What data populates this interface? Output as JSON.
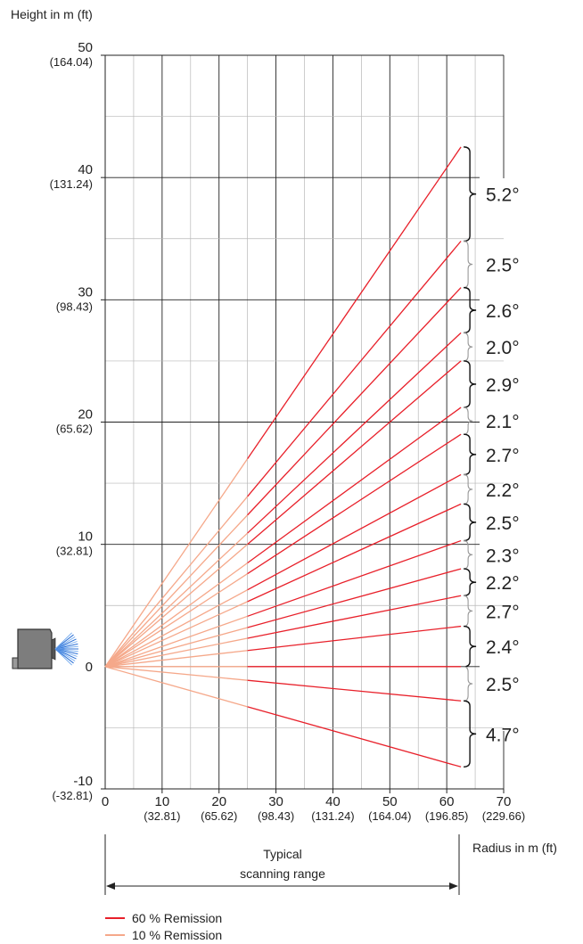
{
  "chart_data": {
    "type": "line",
    "ylabel": "Height in m (ft)",
    "xlabel": "Radius in m (ft)",
    "xlim": [
      0,
      70
    ],
    "ylim": [
      -10,
      50
    ],
    "grid": true,
    "x_ticks": [
      {
        "value": 0,
        "label": "0",
        "sub": ""
      },
      {
        "value": 10,
        "label": "10",
        "sub": "(32.81)"
      },
      {
        "value": 20,
        "label": "20",
        "sub": "(65.62)"
      },
      {
        "value": 30,
        "label": "30",
        "sub": "(98.43)"
      },
      {
        "value": 40,
        "label": "40",
        "sub": "(131.24)"
      },
      {
        "value": 50,
        "label": "50",
        "sub": "(164.04)"
      },
      {
        "value": 60,
        "label": "60",
        "sub": "(196.85)"
      },
      {
        "value": 70,
        "label": "70",
        "sub": "(229.66)"
      }
    ],
    "y_ticks": [
      {
        "value": 50,
        "label": "50",
        "sub": "(164.04)"
      },
      {
        "value": 40,
        "label": "40",
        "sub": "(131.24)"
      },
      {
        "value": 30,
        "label": "30",
        "sub": "(98.43)"
      },
      {
        "value": 20,
        "label": "20",
        "sub": "(65.62)"
      },
      {
        "value": 10,
        "label": "10",
        "sub": "(32.81)"
      },
      {
        "value": 0,
        "label": "0",
        "sub": ""
      },
      {
        "value": -10,
        "label": "-10",
        "sub": "(-32.81)"
      }
    ],
    "series": [
      {
        "name": "60 % Remission",
        "color": "#e8202a",
        "x_end": 62.5
      },
      {
        "name": "10 % Remission",
        "color": "#f5a88a",
        "x_end": 25
      }
    ],
    "beam_end_heights": [
      42.5,
      34.8,
      31.0,
      27.3,
      25.0,
      21.2,
      19.0,
      15.7,
      13.3,
      10.3,
      8.0,
      5.8,
      3.3,
      0,
      -2.8,
      -8.2
    ],
    "sectors": [
      {
        "label": "5.2°",
        "from": 34.8,
        "to": 42.5,
        "emphasis": true
      },
      {
        "label": "2.5°",
        "from": 31.0,
        "to": 34.8,
        "emphasis": false
      },
      {
        "label": "2.6°",
        "from": 27.3,
        "to": 31.0,
        "emphasis": true
      },
      {
        "label": "2.0°",
        "from": 25.0,
        "to": 27.3,
        "emphasis": false
      },
      {
        "label": "2.9°",
        "from": 21.2,
        "to": 25.0,
        "emphasis": true
      },
      {
        "label": "2.1°",
        "from": 19.0,
        "to": 21.2,
        "emphasis": false
      },
      {
        "label": "2.7°",
        "from": 15.7,
        "to": 19.0,
        "emphasis": true
      },
      {
        "label": "2.2°",
        "from": 13.3,
        "to": 15.7,
        "emphasis": false
      },
      {
        "label": "2.5°",
        "from": 10.3,
        "to": 13.3,
        "emphasis": true
      },
      {
        "label": "2.3°",
        "from": 8.0,
        "to": 10.3,
        "emphasis": false
      },
      {
        "label": "2.2°",
        "from": 5.8,
        "to": 8.0,
        "emphasis": true
      },
      {
        "label": "2.7°",
        "from": 3.3,
        "to": 5.8,
        "emphasis": false
      },
      {
        "label": "2.4°",
        "from": 0,
        "to": 3.3,
        "emphasis": true
      },
      {
        "label": "2.5°",
        "from": -2.8,
        "to": 0,
        "emphasis": false
      },
      {
        "label": "4.7°",
        "from": -8.2,
        "to": -2.8,
        "emphasis": true
      }
    ],
    "range_annotation": {
      "line1": "Typical",
      "line2": "scanning range",
      "from": 0,
      "to": 62.5
    },
    "legend": [
      {
        "label": "60 % Remission",
        "color": "#e8202a"
      },
      {
        "label": "10 % Remission",
        "color": "#f5a88a"
      }
    ],
    "legend_position": "bottom-left"
  }
}
